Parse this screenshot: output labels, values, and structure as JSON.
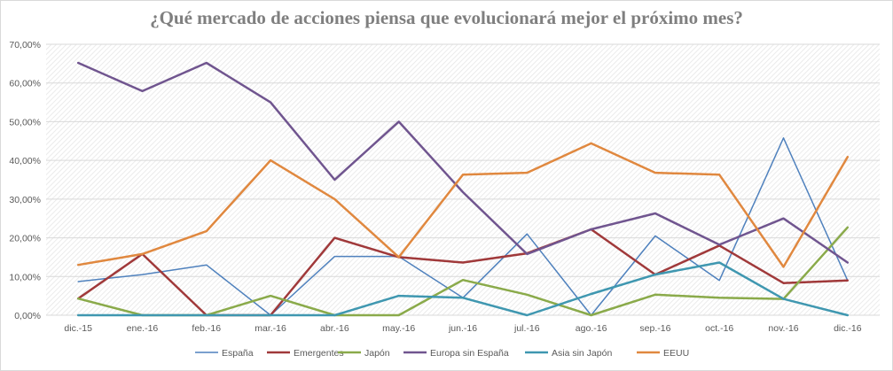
{
  "chart_data": {
    "type": "line",
    "title": "¿Qué mercado de acciones piensa que evolucionará mejor el próximo mes?",
    "xlabel": "",
    "ylabel": "",
    "ylim": [
      0,
      70
    ],
    "y_ticks": [
      "0,00%",
      "10,00%",
      "20,00%",
      "30,00%",
      "40,00%",
      "50,00%",
      "60,00%",
      "70,00%"
    ],
    "y_tick_values": [
      0,
      10,
      20,
      30,
      40,
      50,
      60,
      70
    ],
    "categories": [
      "dic.-15",
      "ene.-16",
      "feb.-16",
      "mar.-16",
      "abr.-16",
      "may.-16",
      "jun.-16",
      "jul.-16",
      "ago.-16",
      "sep.-16",
      "oct.-16",
      "nov.-16",
      "dic.-16"
    ],
    "legend_position": "bottom",
    "grid": true,
    "series": [
      {
        "name": "España",
        "color": "#4f81bd",
        "width": 1.5,
        "values": [
          8.7,
          10.5,
          13,
          0,
          15.2,
          15.2,
          4.5,
          21,
          0,
          20.5,
          9,
          45.8,
          9
        ]
      },
      {
        "name": "Emergentes",
        "color": "#a0393a",
        "width": 2.5,
        "values": [
          4.3,
          15.8,
          0,
          0,
          20,
          15,
          13.6,
          16,
          22.2,
          10.5,
          18,
          8.3,
          9
        ]
      },
      {
        "name": "Japón",
        "color": "#8aaa4a",
        "width": 2.5,
        "values": [
          4.3,
          0,
          0,
          5,
          0,
          0,
          9.1,
          5.3,
          0,
          5.3,
          4.5,
          4.2,
          22.7
        ]
      },
      {
        "name": "Europa sin España",
        "color": "#70558f",
        "width": 2.5,
        "values": [
          65.2,
          57.9,
          65.2,
          55,
          35,
          50,
          31.8,
          15.8,
          22.2,
          26.3,
          18.2,
          25,
          13.6
        ]
      },
      {
        "name": "Asia sin Japón",
        "color": "#3f97b0",
        "width": 2.5,
        "values": [
          0,
          0,
          0,
          0,
          0,
          5,
          4.5,
          0,
          5.5,
          10.5,
          13.6,
          4.2,
          0
        ]
      },
      {
        "name": "EEUU",
        "color": "#e0883f",
        "width": 2.5,
        "values": [
          13,
          15.8,
          21.7,
          40,
          30,
          15,
          36.3,
          36.8,
          44.4,
          36.8,
          36.3,
          12.5,
          40.9
        ]
      }
    ]
  }
}
